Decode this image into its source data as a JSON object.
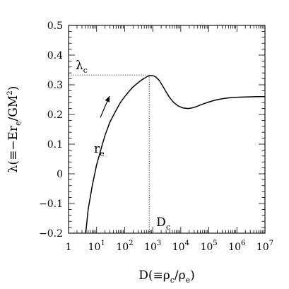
{
  "chart_data": {
    "type": "line",
    "x_scale": "log",
    "xlim": [
      1,
      10000000
    ],
    "ylim": [
      -0.2,
      0.5
    ],
    "grid": false,
    "legend": "none",
    "x_ticks": [
      {
        "value": 1,
        "base": "1",
        "exp": ""
      },
      {
        "value": 10,
        "base": "10",
        "exp": "1"
      },
      {
        "value": 100,
        "base": "10",
        "exp": "2"
      },
      {
        "value": 1000,
        "base": "10",
        "exp": "3"
      },
      {
        "value": 10000,
        "base": "10",
        "exp": "4"
      },
      {
        "value": 100000,
        "base": "10",
        "exp": "5"
      },
      {
        "value": 1000000,
        "base": "10",
        "exp": "6"
      },
      {
        "value": 10000000,
        "base": "10",
        "exp": "7"
      }
    ],
    "y_ticks": [
      {
        "value": 0.5,
        "label": "0.5"
      },
      {
        "value": 0.4,
        "label": "0.4"
      },
      {
        "value": 0.3,
        "label": "0.3"
      },
      {
        "value": 0.2,
        "label": "0.2"
      },
      {
        "value": 0.1,
        "label": "0.1"
      },
      {
        "value": 0,
        "label": "0"
      },
      {
        "value": -0.1,
        "label": "−0.1"
      },
      {
        "value": -0.2,
        "label": "−0.2"
      }
    ],
    "xlabel": {
      "main": "D(≡ρ",
      "sub1": "c",
      "mid": "/ρ",
      "sub2": "e",
      "end": ")"
    },
    "ylabel": {
      "main": "λ(≡−Er",
      "sub": "e",
      "mid": "/GM",
      "sup": "2",
      "end": ")"
    },
    "series": [
      {
        "x": [
          4.1,
          5,
          7,
          10,
          15,
          20,
          30,
          50,
          70,
          100,
          150,
          200,
          300,
          400,
          500,
          650,
          800,
          1000,
          1300,
          1700,
          2200,
          3000,
          4000,
          5500,
          8000,
          12000,
          18000,
          25000,
          35000,
          50000,
          70000,
          100000,
          150000,
          200000,
          300000,
          500000,
          700000,
          1000000,
          2000000,
          5000000,
          10000000
        ],
        "y": [
          -0.2,
          -0.12,
          -0.04,
          0.03,
          0.09,
          0.13,
          0.175,
          0.215,
          0.24,
          0.26,
          0.28,
          0.293,
          0.307,
          0.316,
          0.322,
          0.328,
          0.331,
          0.331,
          0.326,
          0.315,
          0.298,
          0.276,
          0.257,
          0.241,
          0.229,
          0.222,
          0.22,
          0.222,
          0.226,
          0.232,
          0.237,
          0.242,
          0.247,
          0.25,
          0.253,
          0.256,
          0.257,
          0.258,
          0.259,
          0.26,
          0.26
        ]
      }
    ],
    "critical": {
      "x": 750,
      "y": 0.333
    },
    "annotations": {
      "lambda_c": {
        "main": "λ",
        "sub": "c"
      },
      "D_c": {
        "main": "D",
        "sub": "c"
      },
      "r_e": {
        "main": "r",
        "sub": "e"
      }
    }
  }
}
